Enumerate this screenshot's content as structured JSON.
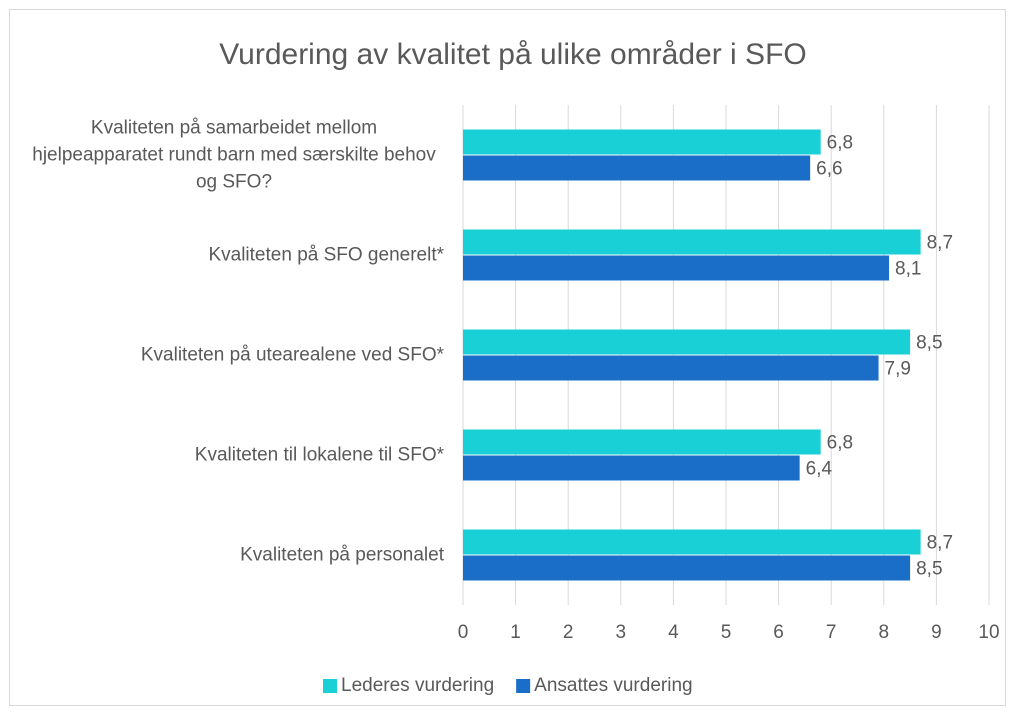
{
  "chart_data": {
    "type": "barh",
    "title": "Vurdering av kvalitet på ulike områder i SFO",
    "categories": [
      "Kvaliteten på samarbeidet mellom hjelpeapparatet rundt barn med særskilte behov og SFO?",
      "Kvaliteten på SFO generelt*",
      "Kvaliteten på utearealene ved SFO*",
      "Kvaliteten til lokalene til SFO*",
      "Kvaliteten på personalet"
    ],
    "series": [
      {
        "name": "Lederes vurdering",
        "color": "#18d0d6",
        "values": [
          6.8,
          8.7,
          8.5,
          6.8,
          8.7
        ],
        "value_labels": [
          "6,8",
          "8,7",
          "8,5",
          "6,8",
          "8,7"
        ]
      },
      {
        "name": "Ansattes vurdering",
        "color": "#1a6ec8",
        "values": [
          6.6,
          8.1,
          7.9,
          6.4,
          8.5
        ],
        "value_labels": [
          "6,6",
          "8,1",
          "7,9",
          "6,4",
          "8,5"
        ]
      }
    ],
    "xlim": [
      0,
      10
    ],
    "xticks": [
      0,
      1,
      2,
      3,
      4,
      5,
      6,
      7,
      8,
      9,
      10
    ],
    "grid": true,
    "legend": "bottom"
  }
}
